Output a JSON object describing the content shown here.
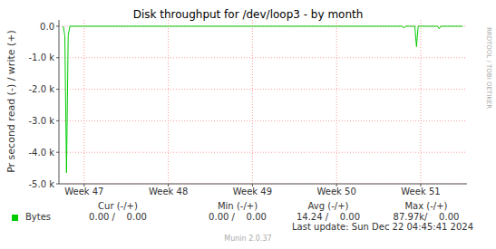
{
  "chart_data": {
    "type": "line",
    "title": "Disk throughput for /dev/loop3 - by month",
    "y_label": "Pr second read (-) / write (+)",
    "watermark": "RRDTOOL / TOBI OETIKER",
    "x": [
      46.75,
      46.77,
      46.79,
      46.81,
      46.83,
      47.5,
      48,
      48.5,
      49,
      49.5,
      50,
      50.5,
      50.78,
      50.8,
      50.82,
      50.93,
      50.95,
      50.97,
      51.1,
      51.2,
      51.22,
      51.24,
      51.4,
      51.5
    ],
    "xlim": [
      46.7,
      51.55
    ],
    "xticks": [
      {
        "value": 47,
        "label": "Week 47"
      },
      {
        "value": 48,
        "label": "Week 48"
      },
      {
        "value": 49,
        "label": "Week 49"
      },
      {
        "value": 50,
        "label": "Week 50"
      },
      {
        "value": 51,
        "label": "Week 51"
      }
    ],
    "ylim": [
      -5000,
      200
    ],
    "yticks": [
      {
        "value": -5000,
        "label": "-5.0 k"
      },
      {
        "value": -4000,
        "label": "-4.0 k"
      },
      {
        "value": -3000,
        "label": "-3.0 k"
      },
      {
        "value": -2000,
        "label": "-2.0 k"
      },
      {
        "value": -1000,
        "label": "-1.0 k"
      },
      {
        "value": 0,
        "label": "0.0"
      }
    ],
    "grid": true,
    "series": [
      {
        "name": "Bytes",
        "color": "#00cc00",
        "values": [
          0,
          -300,
          -4650,
          -300,
          0,
          0,
          0,
          0,
          0,
          0,
          0,
          0,
          0,
          -60,
          0,
          0,
          -650,
          0,
          0,
          0,
          -80,
          0,
          0,
          0
        ]
      }
    ],
    "legend_table": {
      "headers": [
        "Cur (-/+)",
        "Min (-/+)",
        "Avg (-/+)",
        "Max (-/+)"
      ],
      "rows": [
        {
          "name": "Bytes",
          "cells": [
            "0.00 /    0.00",
            "0.00 /    0.00",
            "14.24 /    0.00",
            "87.97k/    0.00"
          ]
        }
      ]
    },
    "last_update": "Last update: Sun Dec 22 04:45:41 2024",
    "credit": "Munin 2.0.37"
  }
}
